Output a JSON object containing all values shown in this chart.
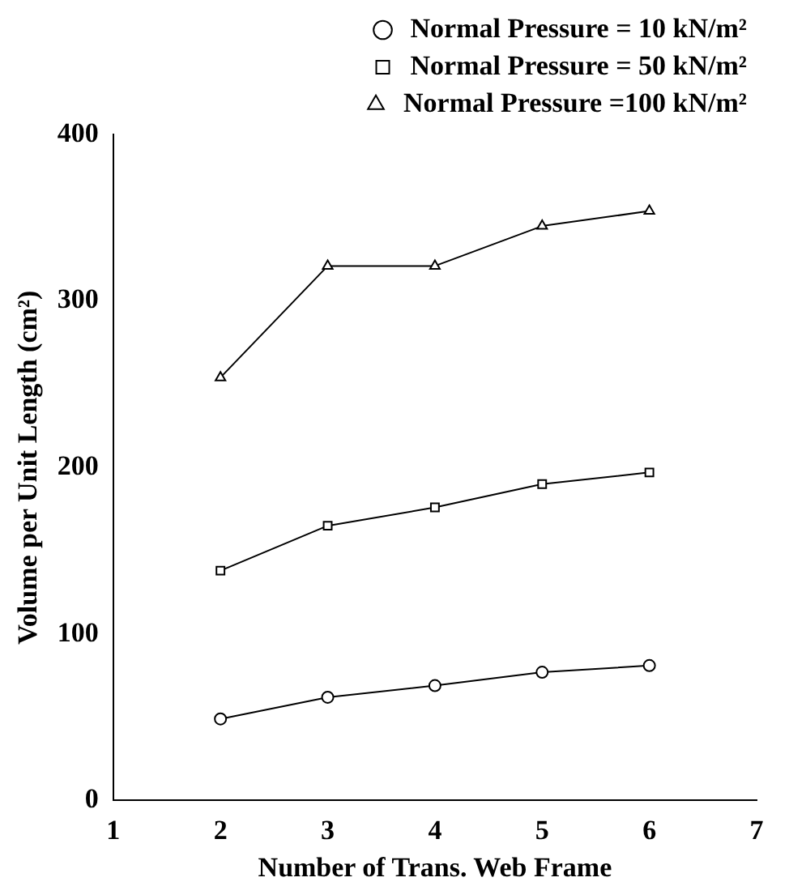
{
  "chart_data": {
    "type": "line",
    "xlabel": "Number of Trans. Web Frame",
    "ylabel": "Volume per Unit Length (cm²)",
    "x": [
      2,
      3,
      4,
      5,
      6
    ],
    "series": [
      {
        "name": "Normal Pressure = 10 kN/m²",
        "color": "#000000",
        "marker": "circle",
        "values": [
          49,
          62,
          69,
          77,
          81
        ]
      },
      {
        "name": "Normal Pressure = 50 kN/m²",
        "color": "#000000",
        "marker": "square",
        "values": [
          138,
          165,
          176,
          190,
          197
        ]
      },
      {
        "name": "Normal Pressure =100 kN/m²",
        "color": "#000000",
        "marker": "triangle",
        "values": [
          254,
          321,
          321,
          345,
          354
        ]
      }
    ],
    "xlim": [
      1,
      7
    ],
    "xticks": [
      1,
      2,
      3,
      4,
      5,
      6,
      7
    ],
    "ylim": [
      0,
      400
    ],
    "yticks": [
      0,
      100,
      200,
      300,
      400
    ],
    "grid": false,
    "legend": "top right",
    "line_style": "solid"
  }
}
